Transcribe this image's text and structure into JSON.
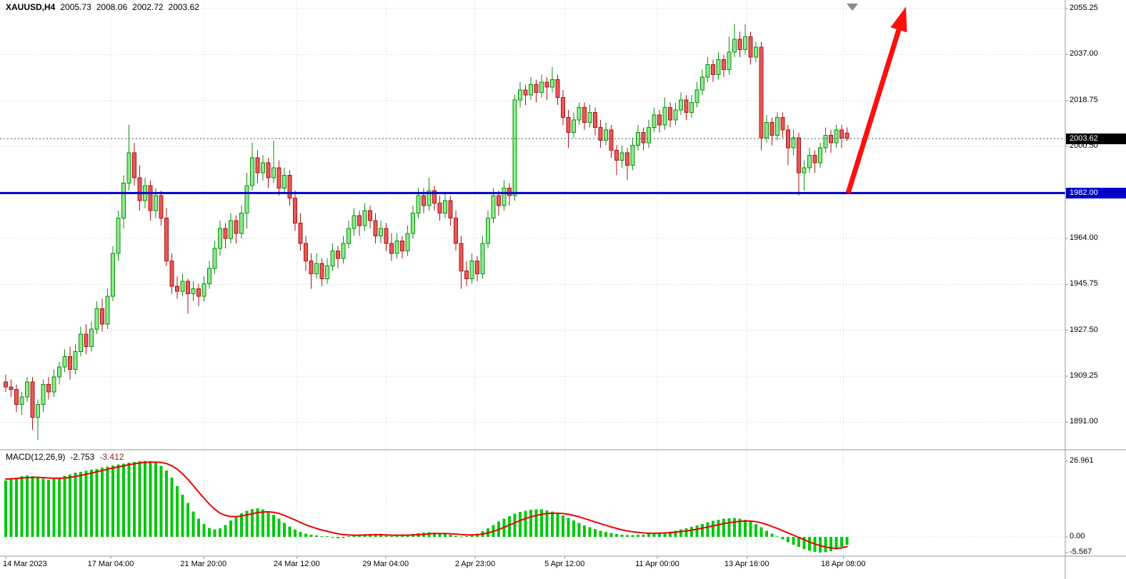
{
  "header": {
    "symbol": "XAUUSD,H4",
    "open": "2005.73",
    "high": "2008.06",
    "low": "2002.72",
    "close": "2003.62"
  },
  "macd_label": {
    "name": "MACD(12,26,9)",
    "main": "-2.753",
    "signal": "-3.412"
  },
  "badges": {
    "current": {
      "text": "2003.62",
      "price": 2003.62,
      "bg": "#000000",
      "fg": "#ffffff"
    },
    "hline": {
      "text": "1982.00",
      "price": 1982.0,
      "bg": "#0000C8",
      "fg": "#ffffff"
    }
  },
  "price_axis": {
    "labels": [
      {
        "text": "2055.25",
        "price": 2055.25
      },
      {
        "text": "2037.00",
        "price": 2037.0
      },
      {
        "text": "2018.75",
        "price": 2018.75
      },
      {
        "text": "2000.50",
        "price": 2000.5
      },
      {
        "text": "1964.00",
        "price": 1964.0
      },
      {
        "text": "1945.75",
        "price": 1945.75
      },
      {
        "text": "1927.50",
        "price": 1927.5
      },
      {
        "text": "1909.25",
        "price": 1909.25
      },
      {
        "text": "1891.00",
        "price": 1891.0
      }
    ]
  },
  "macd_axis": {
    "labels": [
      {
        "text": "26.961",
        "value": 26.961
      },
      {
        "text": "0.00",
        "value": 0
      },
      {
        "text": "-5.567",
        "value": -5.567
      }
    ]
  },
  "time_axis": {
    "labels": [
      {
        "text": "14 Mar 2023",
        "bar": 0,
        "align": "left"
      },
      {
        "text": "17 Mar 04:00",
        "bar": 19.6
      },
      {
        "text": "21 Mar 20:00",
        "bar": 36.9
      },
      {
        "text": "24 Mar 12:00",
        "bar": 54.3
      },
      {
        "text": "29 Mar 04:00",
        "bar": 70.9
      },
      {
        "text": "2 Apr 23:00",
        "bar": 87.6
      },
      {
        "text": "5 Apr 12:00",
        "bar": 104.3
      },
      {
        "text": "11 Apr 00:00",
        "bar": 121.6
      },
      {
        "text": "13 Apr 16:00",
        "bar": 138.3
      },
      {
        "text": "18 Apr 08:00",
        "bar": 156.3
      }
    ]
  },
  "chart_data": {
    "type": "candlestick",
    "symbol": "XAUUSD",
    "timeframe": "H4",
    "ohlc_display": [
      2005.73,
      2008.06,
      2002.72,
      2003.62
    ],
    "grid_prices": [
      2055.25,
      2037.0,
      2018.75,
      2000.5,
      1982.25,
      1964.0,
      1945.75,
      1927.5,
      1909.25,
      1891.0
    ],
    "current_price": 2003.62,
    "hline": {
      "price": 1982.0,
      "color": "#0000C8",
      "width": 3
    },
    "arrow": {
      "from_bar": 157.2,
      "from_price": 1982.0,
      "to_bar": 168,
      "to_price": 2056.0,
      "color": "#FF0E0E"
    },
    "shift_marker": {
      "bar": 158,
      "color": "#8a8a8a"
    },
    "colors": {
      "bull_stroke": "#0a8f0a",
      "bull_fill": "#8fe88f",
      "bear_stroke": "#b01212",
      "bear_fill": "#e25b5b",
      "macd_hist": "#00C80C",
      "macd_signal": "#ee0000",
      "grid": "#c9c9d6",
      "axis": "#9a9a9a",
      "price_line": "#4a4a4a"
    },
    "candles": [
      [
        1907,
        1910,
        1903,
        1905
      ],
      [
        1905,
        1908,
        1901,
        1904
      ],
      [
        1904,
        1906,
        1895,
        1898
      ],
      [
        1898,
        1903,
        1894,
        1901
      ],
      [
        1901,
        1909,
        1899,
        1907
      ],
      [
        1907,
        1909,
        1888,
        1893
      ],
      [
        1893,
        1900,
        1884,
        1898
      ],
      [
        1898,
        1908,
        1895,
        1906
      ],
      [
        1906,
        1909,
        1900,
        1903
      ],
      [
        1903,
        1912,
        1901,
        1909
      ],
      [
        1909,
        1915,
        1906,
        1913
      ],
      [
        1913,
        1920,
        1911,
        1917
      ],
      [
        1917,
        1921,
        1908,
        1912
      ],
      [
        1912,
        1922,
        1910,
        1919
      ],
      [
        1919,
        1929,
        1917,
        1926
      ],
      [
        1926,
        1930,
        1918,
        1921
      ],
      [
        1921,
        1931,
        1919,
        1928
      ],
      [
        1928,
        1939,
        1926,
        1936
      ],
      [
        1936,
        1940,
        1927,
        1930
      ],
      [
        1930,
        1944,
        1928,
        1941
      ],
      [
        1941,
        1961,
        1939,
        1958
      ],
      [
        1958,
        1975,
        1955,
        1972
      ],
      [
        1972,
        1989,
        1968,
        1986
      ],
      [
        1986,
        2009,
        1983,
        1998
      ],
      [
        1998,
        2002,
        1985,
        1988
      ],
      [
        1988,
        1993,
        1975,
        1979
      ],
      [
        1979,
        1988,
        1976,
        1985
      ],
      [
        1985,
        1987,
        1971,
        1975
      ],
      [
        1975,
        1984,
        1972,
        1981
      ],
      [
        1981,
        1983,
        1969,
        1972
      ],
      [
        1972,
        1976,
        1953,
        1955
      ],
      [
        1955,
        1958,
        1942,
        1945
      ],
      [
        1945,
        1949,
        1940,
        1943
      ],
      [
        1943,
        1950,
        1941,
        1947
      ],
      [
        1947,
        1948,
        1934,
        1942
      ],
      [
        1942,
        1947,
        1939,
        1944
      ],
      [
        1944,
        1946,
        1937,
        1941
      ],
      [
        1941,
        1949,
        1939,
        1946
      ],
      [
        1946,
        1955,
        1944,
        1952
      ],
      [
        1952,
        1963,
        1950,
        1960
      ],
      [
        1960,
        1971,
        1957,
        1968
      ],
      [
        1968,
        1970,
        1960,
        1964
      ],
      [
        1964,
        1974,
        1962,
        1971
      ],
      [
        1971,
        1973,
        1962,
        1966
      ],
      [
        1966,
        1977,
        1964,
        1974
      ],
      [
        1974,
        1990,
        1968,
        1985
      ],
      [
        1985,
        2002,
        1983,
        1996
      ],
      [
        1996,
        1999,
        1986,
        1990
      ],
      [
        1990,
        1997,
        1987,
        1994
      ],
      [
        1994,
        1996,
        1984,
        1988
      ],
      [
        1988,
        2003,
        1986,
        1992
      ],
      [
        1992,
        1995,
        1981,
        1984
      ],
      [
        1984,
        1992,
        1982,
        1989
      ],
      [
        1989,
        1991,
        1977,
        1980
      ],
      [
        1980,
        1983,
        1967,
        1970
      ],
      [
        1970,
        1974,
        1959,
        1962
      ],
      [
        1962,
        1965,
        1951,
        1955
      ],
      [
        1955,
        1958,
        1944,
        1950
      ],
      [
        1950,
        1958,
        1948,
        1954
      ],
      [
        1954,
        1956,
        1945,
        1948
      ],
      [
        1948,
        1956,
        1946,
        1953
      ],
      [
        1953,
        1962,
        1951,
        1959
      ],
      [
        1959,
        1961,
        1952,
        1956
      ],
      [
        1956,
        1965,
        1954,
        1962
      ],
      [
        1962,
        1971,
        1960,
        1968
      ],
      [
        1968,
        1976,
        1965,
        1973
      ],
      [
        1973,
        1975,
        1965,
        1969
      ],
      [
        1969,
        1978,
        1967,
        1975
      ],
      [
        1975,
        1977,
        1968,
        1971
      ],
      [
        1971,
        1974,
        1962,
        1965
      ],
      [
        1965,
        1971,
        1962,
        1968
      ],
      [
        1968,
        1970,
        1959,
        1962
      ],
      [
        1962,
        1966,
        1955,
        1958
      ],
      [
        1958,
        1966,
        1956,
        1963
      ],
      [
        1963,
        1965,
        1956,
        1959
      ],
      [
        1959,
        1969,
        1957,
        1966
      ],
      [
        1966,
        1977,
        1964,
        1974
      ],
      [
        1974,
        1984,
        1972,
        1981
      ],
      [
        1981,
        1984,
        1974,
        1977
      ],
      [
        1977,
        1988,
        1975,
        1983
      ],
      [
        1983,
        1985,
        1975,
        1978
      ],
      [
        1978,
        1981,
        1971,
        1974
      ],
      [
        1974,
        1982,
        1972,
        1979
      ],
      [
        1979,
        1981,
        1969,
        1972
      ],
      [
        1972,
        1975,
        1959,
        1962
      ],
      [
        1962,
        1965,
        1944,
        1951
      ],
      [
        1951,
        1955,
        1945,
        1948
      ],
      [
        1948,
        1958,
        1946,
        1955
      ],
      [
        1955,
        1957,
        1947,
        1950
      ],
      [
        1950,
        1965,
        1948,
        1962
      ],
      [
        1962,
        1975,
        1960,
        1972
      ],
      [
        1972,
        1984,
        1970,
        1981
      ],
      [
        1981,
        1983,
        1973,
        1977
      ],
      [
        1977,
        1987,
        1975,
        1984
      ],
      [
        1984,
        1986,
        1977,
        1981
      ],
      [
        1981,
        2021,
        1979,
        2019
      ],
      [
        2019,
        2026,
        2016,
        2023
      ],
      [
        2023,
        2025,
        2017,
        2021
      ],
      [
        2021,
        2028,
        2019,
        2025
      ],
      [
        2025,
        2027,
        2018,
        2022
      ],
      [
        2022,
        2029,
        2020,
        2026
      ],
      [
        2026,
        2028,
        2019,
        2024
      ],
      [
        2024,
        2032,
        2022,
        2027
      ],
      [
        2027,
        2029,
        2017,
        2020
      ],
      [
        2020,
        2023,
        2009,
        2012
      ],
      [
        2012,
        2015,
        2000,
        2006
      ],
      [
        2006,
        2014,
        2004,
        2011
      ],
      [
        2011,
        2018,
        2009,
        2016
      ],
      [
        2016,
        2018,
        2007,
        2010
      ],
      [
        2010,
        2017,
        2008,
        2014
      ],
      [
        2014,
        2016,
        2005,
        2008
      ],
      [
        2008,
        2011,
        2000,
        2003
      ],
      [
        2003,
        2010,
        2001,
        2007
      ],
      [
        2007,
        2009,
        1996,
        1999
      ],
      [
        1999,
        2001,
        1989,
        1995
      ],
      [
        1995,
        2001,
        1992,
        1998
      ],
      [
        1998,
        2000,
        1987,
        1993
      ],
      [
        1993,
        2004,
        1991,
        2001
      ],
      [
        2001,
        2009,
        1999,
        2006
      ],
      [
        2006,
        2008,
        1999,
        2002
      ],
      [
        2002,
        2011,
        2000,
        2008
      ],
      [
        2008,
        2016,
        2006,
        2013
      ],
      [
        2013,
        2015,
        2006,
        2009
      ],
      [
        2009,
        2020,
        2007,
        2016
      ],
      [
        2016,
        2018,
        2008,
        2011
      ],
      [
        2011,
        2018,
        2009,
        2015
      ],
      [
        2015,
        2022,
        2013,
        2019
      ],
      [
        2019,
        2021,
        2011,
        2014
      ],
      [
        2014,
        2021,
        2012,
        2018
      ],
      [
        2018,
        2026,
        2016,
        2023
      ],
      [
        2023,
        2031,
        2021,
        2028
      ],
      [
        2028,
        2036,
        2026,
        2033
      ],
      [
        2033,
        2035,
        2026,
        2029
      ],
      [
        2029,
        2038,
        2027,
        2035
      ],
      [
        2035,
        2037,
        2028,
        2031
      ],
      [
        2031,
        2044,
        2029,
        2038
      ],
      [
        2038,
        2049,
        2036,
        2043
      ],
      [
        2043,
        2046,
        2036,
        2039
      ],
      [
        2039,
        2049,
        2037,
        2044
      ],
      [
        2044,
        2046,
        2033,
        2036
      ],
      [
        2036,
        2042,
        2034,
        2040
      ],
      [
        2040,
        2042,
        1999,
        2004
      ],
      [
        2004,
        2013,
        2002,
        2010
      ],
      [
        2010,
        2012,
        2001,
        2005
      ],
      [
        2005,
        2014,
        2003,
        2012
      ],
      [
        2012,
        2014,
        2004,
        2007
      ],
      [
        2007,
        2009,
        1993,
        2000
      ],
      [
        2000,
        2007,
        1997,
        2004
      ],
      [
        2004,
        2006,
        1981,
        1990
      ],
      [
        1990,
        1995,
        1983,
        1992
      ],
      [
        1992,
        2000,
        1990,
        1997
      ],
      [
        1997,
        1999,
        1990,
        1994
      ],
      [
        1994,
        2002,
        1992,
        2000
      ],
      [
        2000,
        2008,
        1998,
        2005
      ],
      [
        2005,
        2007,
        1998,
        2002
      ],
      [
        2002,
        2009,
        2000,
        2007
      ],
      [
        2007,
        2009,
        2000,
        2004
      ],
      [
        2005.73,
        2008.06,
        2002.72,
        2003.62
      ]
    ],
    "macd": {
      "params": "12,26,9",
      "hist": [
        20.0,
        20.5,
        21.0,
        21.5,
        21.8,
        21.5,
        21.0,
        20.6,
        20.3,
        20.5,
        21.0,
        21.6,
        22.2,
        22.8,
        23.1,
        23.4,
        23.8,
        24.1,
        24.5,
        24.9,
        25.3,
        25.7,
        26.0,
        26.3,
        26.6,
        26.8,
        26.961,
        26.8,
        26.3,
        25.2,
        23.5,
        21.0,
        18.0,
        15.0,
        12.0,
        9.0,
        6.5,
        4.5,
        3.2,
        2.6,
        3.0,
        4.2,
        5.8,
        7.2,
        8.4,
        9.3,
        9.9,
        10.1,
        9.8,
        9.0,
        7.8,
        6.4,
        5.0,
        3.7,
        2.6,
        1.8,
        1.2,
        0.8,
        0.5,
        0.3,
        0.2,
        -0.3,
        -0.5,
        -0.4,
        0.2,
        0.5,
        0.7,
        0.9,
        1.0,
        0.8,
        0.6,
        0.4,
        0.3,
        0.4,
        0.5,
        0.7,
        1.0,
        1.3,
        1.5,
        1.6,
        1.5,
        1.3,
        1.1,
        0.8,
        0.4,
        0.1,
        0.3,
        0.7,
        1.2,
        2.0,
        3.0,
        4.2,
        5.4,
        6.5,
        7.4,
        8.2,
        8.8,
        9.3,
        9.6,
        9.8,
        9.7,
        9.4,
        9.0,
        8.4,
        7.6,
        6.7,
        5.8,
        4.9,
        4.1,
        3.4,
        2.8,
        2.2,
        1.8,
        1.4,
        1.0,
        0.8,
        0.6,
        0.6,
        0.7,
        0.8,
        1.0,
        1.2,
        1.4,
        1.7,
        1.9,
        2.2,
        2.6,
        3.0,
        3.5,
        4.0,
        4.6,
        5.2,
        5.7,
        6.1,
        6.4,
        6.6,
        6.7,
        6.5,
        6.1,
        5.5,
        4.6,
        3.4,
        2.2,
        1.1,
        0.1,
        -0.9,
        -1.9,
        -2.8,
        -3.6,
        -4.3,
        -4.9,
        -5.3,
        -5.567,
        -5.4,
        -5.0,
        -4.4,
        -3.6,
        -2.753
      ],
      "signal": [
        20.5,
        20.6,
        20.7,
        20.9,
        21.0,
        21.1,
        21.1,
        21.0,
        20.9,
        20.8,
        20.8,
        20.9,
        21.1,
        21.4,
        21.8,
        22.2,
        22.6,
        23.1,
        23.5,
        24.0,
        24.4,
        24.8,
        25.2,
        25.6,
        25.9,
        26.2,
        26.4,
        26.5,
        26.5,
        26.4,
        26.0,
        25.2,
        24.0,
        22.4,
        20.4,
        18.2,
        15.9,
        13.7,
        11.6,
        9.8,
        8.4,
        7.6,
        7.2,
        7.2,
        7.4,
        7.8,
        8.2,
        8.6,
        8.8,
        8.9,
        8.7,
        8.3,
        7.6,
        6.8,
        6.0,
        5.1,
        4.3,
        3.6,
        3.0,
        2.4,
        2.0,
        1.5,
        1.1,
        0.8,
        0.7,
        0.6,
        0.6,
        0.7,
        0.7,
        0.8,
        0.8,
        0.7,
        0.6,
        0.6,
        0.6,
        0.6,
        0.7,
        0.8,
        0.9,
        1.1,
        1.2,
        1.2,
        1.2,
        1.1,
        1.0,
        0.8,
        0.7,
        0.7,
        0.8,
        1.0,
        1.4,
        1.9,
        2.6,
        3.4,
        4.2,
        5.0,
        5.8,
        6.5,
        7.1,
        7.6,
        8.0,
        8.3,
        8.4,
        8.4,
        8.3,
        8.0,
        7.6,
        7.1,
        6.5,
        5.9,
        5.3,
        4.7,
        4.1,
        3.5,
        3.0,
        2.5,
        2.1,
        1.8,
        1.6,
        1.4,
        1.3,
        1.3,
        1.3,
        1.4,
        1.5,
        1.7,
        1.9,
        2.1,
        2.4,
        2.7,
        3.1,
        3.5,
        3.9,
        4.3,
        4.7,
        5.0,
        5.3,
        5.5,
        5.6,
        5.6,
        5.4,
        5.0,
        4.4,
        3.7,
        3.0,
        2.2,
        1.4,
        0.6,
        -0.2,
        -1.0,
        -1.8,
        -2.5,
        -3.1,
        -3.6,
        -3.9,
        -4.1,
        -3.9,
        -3.412
      ]
    }
  }
}
